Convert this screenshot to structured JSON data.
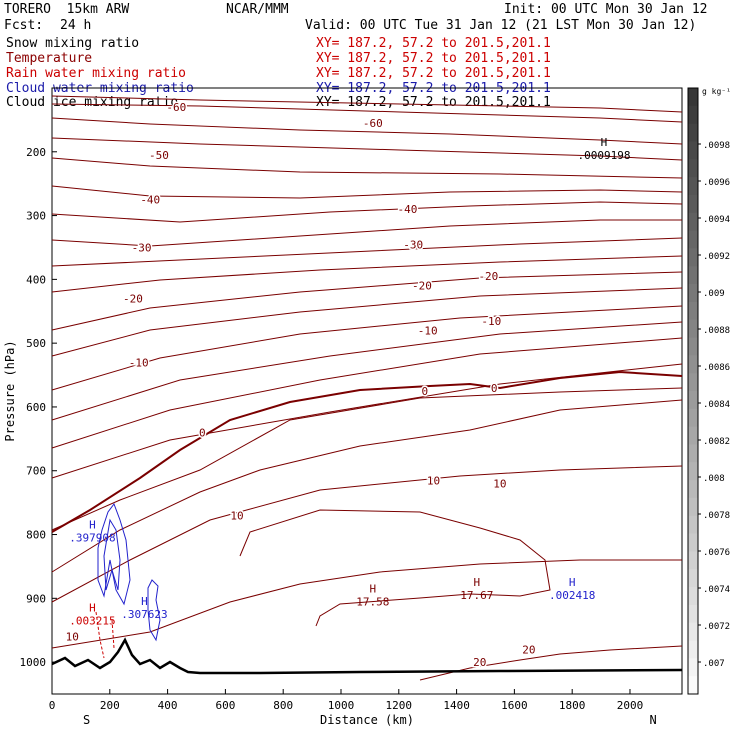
{
  "header": {
    "model": "TORERO  15km ARW",
    "org": "NCAR/MMM",
    "init": "Init: 00 UTC Mon 30 Jan 12",
    "fcst_label": "Fcst:",
    "fcst_value": "24 h",
    "valid": "Valid: 00 UTC Tue 31 Jan 12 (21 LST Mon 30 Jan 12)"
  },
  "fields": [
    {
      "name": "Snow mixing ratio",
      "color": "#000000",
      "xy": "XY= 187.2, 57.2 to 201.5,201.1"
    },
    {
      "name": "Temperature",
      "color": "#8b0000",
      "xy": "XY= 187.2, 57.2 to 201.5,201.1"
    },
    {
      "name": "Rain water mixing ratio",
      "color": "#cc0000",
      "xy": "XY= 187.2, 57.2 to 201.5,201.1"
    },
    {
      "name": "Cloud water mixing ratio",
      "color": "#1a1aaa",
      "xy": "XY= 187.2, 57.2 to 201.5,201.1"
    },
    {
      "name": "Cloud ice mixing ratio",
      "color": "#000000",
      "xy": "XY= 187.2, 57.2 to 201.5,201.1"
    }
  ],
  "colors": {
    "temperature": "#7a0000",
    "zero_isotherm": "#7a0000",
    "cloud_water": "#2222cc",
    "rain": "#cc0000",
    "terrain": "#000000"
  },
  "chart_data": {
    "type": "contour",
    "xlabel": "Distance (km)",
    "ylabel": "Pressure (hPa)",
    "xlim": [
      0,
      2180
    ],
    "ylim": [
      1050,
      100
    ],
    "x_ticks": [
      0,
      200,
      400,
      600,
      800,
      1000,
      1200,
      1400,
      1600,
      1800,
      2000
    ],
    "y_ticks": [
      200,
      300,
      400,
      500,
      600,
      700,
      800,
      900,
      1000
    ],
    "direction_left": "S",
    "direction_right": "N",
    "temperature_levels": [
      -60,
      -50,
      -40,
      -30,
      -20,
      -10,
      0,
      10,
      20
    ],
    "temperature_labels": [
      {
        "text": "-60",
        "x": 430,
        "p": 130
      },
      {
        "text": "-60",
        "x": 1110,
        "p": 155
      },
      {
        "text": "-50",
        "x": 370,
        "p": 205
      },
      {
        "text": "-40",
        "x": 340,
        "p": 275
      },
      {
        "text": "-40",
        "x": 1230,
        "p": 290
      },
      {
        "text": "-30",
        "x": 310,
        "p": 350
      },
      {
        "text": "-30",
        "x": 1250,
        "p": 345
      },
      {
        "text": "-20",
        "x": 280,
        "p": 430
      },
      {
        "text": "-20",
        "x": 1280,
        "p": 410
      },
      {
        "text": "-20",
        "x": 1510,
        "p": 395
      },
      {
        "text": "-10",
        "x": 300,
        "p": 530
      },
      {
        "text": "-10",
        "x": 1300,
        "p": 480
      },
      {
        "text": "-10",
        "x": 1520,
        "p": 465
      },
      {
        "text": "0",
        "x": 520,
        "p": 640
      },
      {
        "text": "0",
        "x": 1290,
        "p": 575
      },
      {
        "text": "0",
        "x": 1530,
        "p": 570
      },
      {
        "text": "10",
        "x": 640,
        "p": 770
      },
      {
        "text": "10",
        "x": 1320,
        "p": 715
      },
      {
        "text": "10",
        "x": 1550,
        "p": 720
      },
      {
        "text": "10",
        "x": 70,
        "p": 960
      },
      {
        "text": "20",
        "x": 1480,
        "p": 1000
      },
      {
        "text": "20",
        "x": 1650,
        "p": 980
      }
    ],
    "extrema": [
      {
        "symbol": "H",
        "value": ".0009198",
        "x": 1910,
        "p": 200,
        "field": "snow"
      },
      {
        "symbol": "H",
        "value": "17.58",
        "x": 1110,
        "p": 900,
        "field": "temperature"
      },
      {
        "symbol": "H",
        "value": "17.67",
        "x": 1470,
        "p": 890,
        "field": "temperature"
      },
      {
        "symbol": "H",
        "value": ".002418",
        "x": 1800,
        "p": 890,
        "field": "cloud_water"
      },
      {
        "symbol": "H",
        "value": ".397908",
        "x": 140,
        "p": 800,
        "field": "cloud_water"
      },
      {
        "symbol": "H",
        "value": ".307623",
        "x": 320,
        "p": 920,
        "field": "cloud_water"
      },
      {
        "symbol": "H",
        "value": ".003215",
        "x": 140,
        "p": 930,
        "field": "rain"
      }
    ],
    "colorbar": {
      "unit_label": "g kg⁻¹",
      "tick_labels": [
        ".0098",
        ".0096",
        ".0094",
        ".0092",
        ".009",
        ".0088",
        ".0086",
        ".0084",
        ".0082",
        ".008",
        ".0078",
        ".0076",
        ".0074",
        ".0072",
        ".007"
      ]
    }
  }
}
